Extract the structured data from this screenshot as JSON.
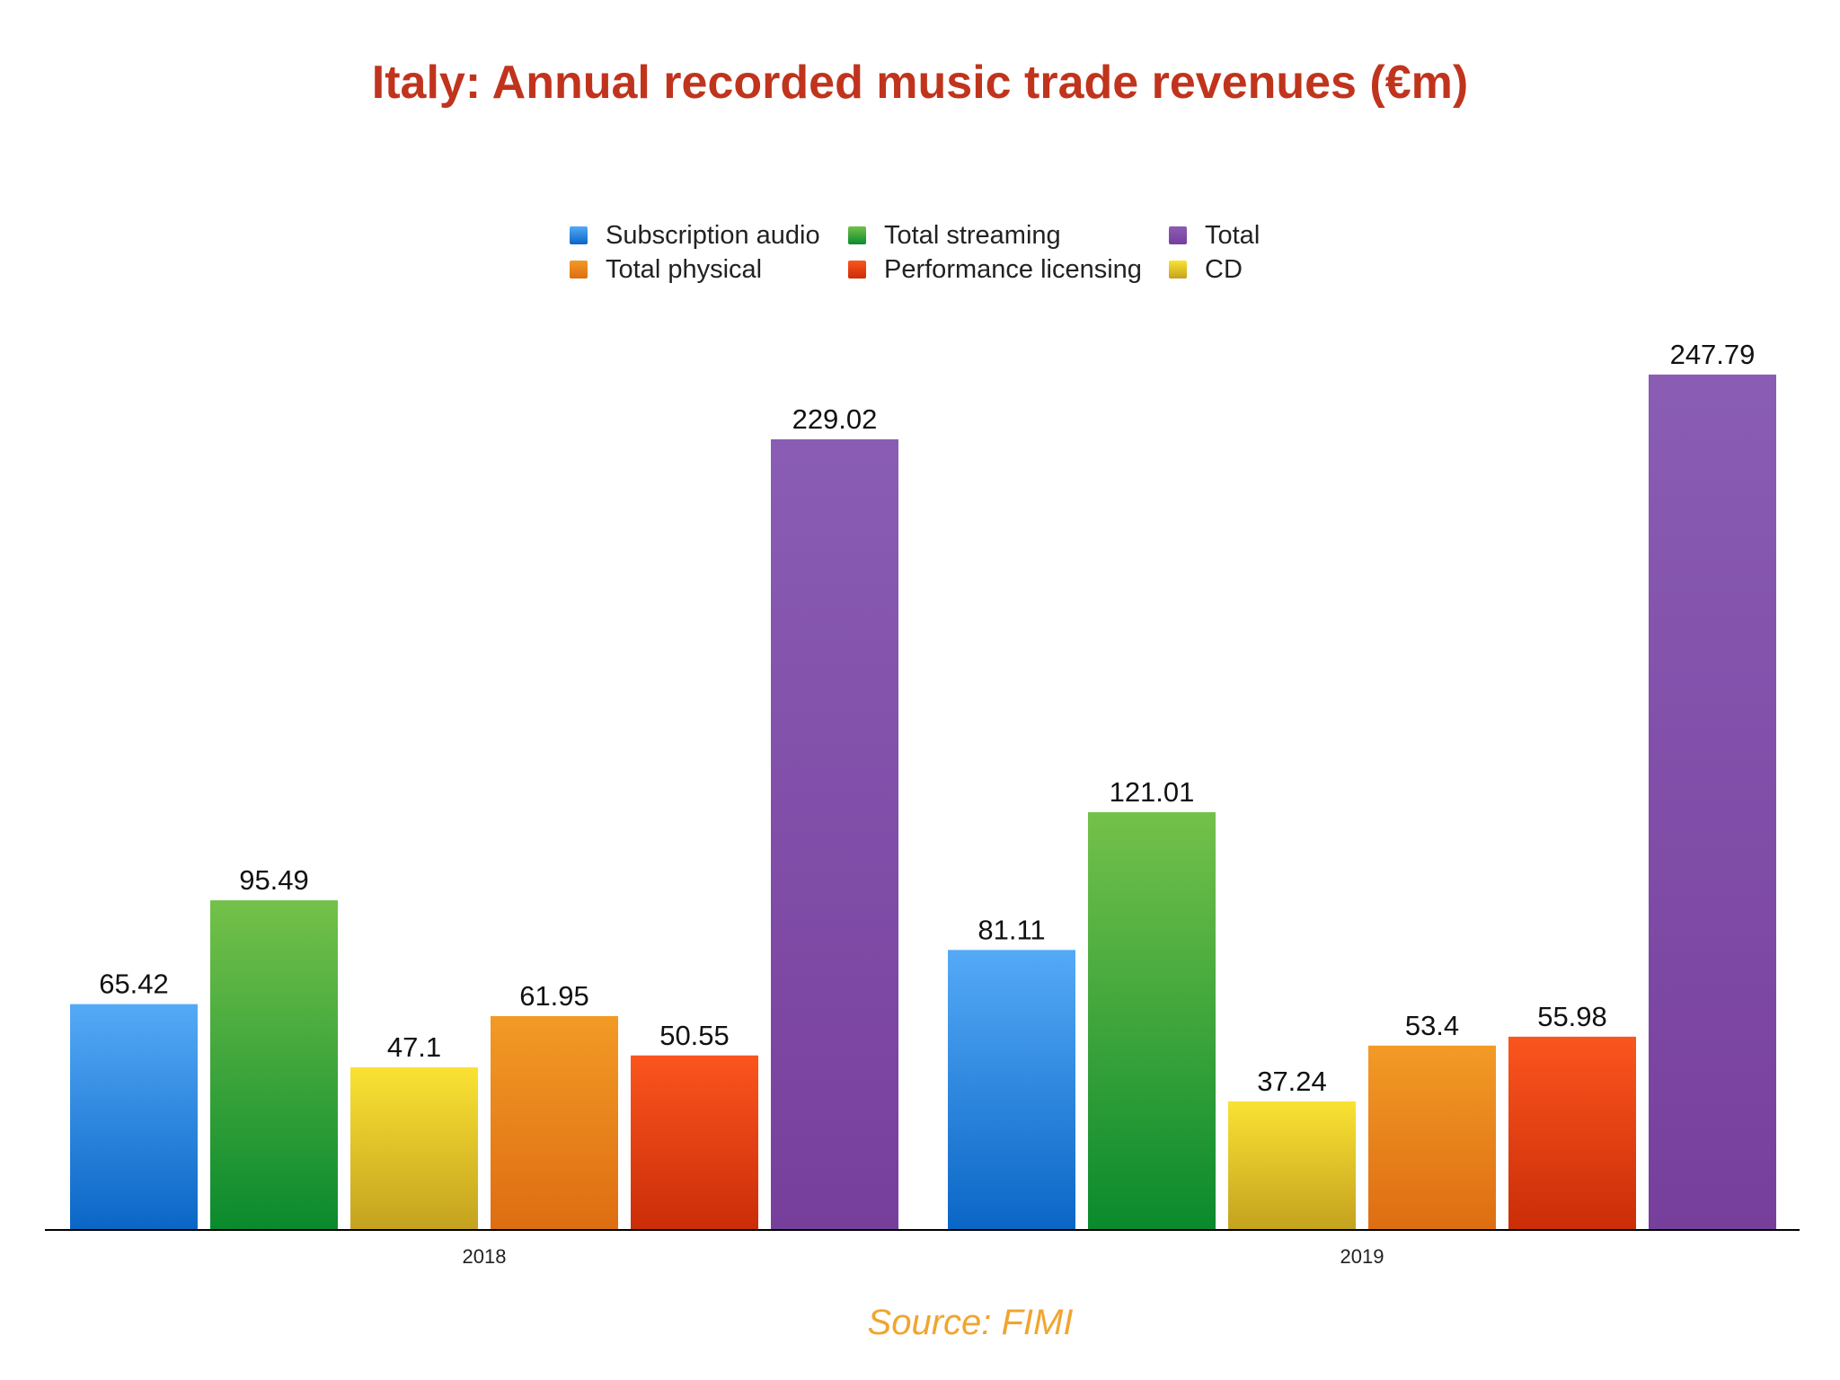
{
  "chart_data": {
    "type": "bar",
    "title": "Italy: Annual recorded music trade revenues (€m)",
    "categories": [
      "2018",
      "2019"
    ],
    "series": [
      {
        "name": "Subscription audio",
        "values": [
          65.42,
          81.11
        ],
        "color": "#2f8ae8",
        "colorTop": "#55aaf7",
        "colorBottom": "#0a66c6"
      },
      {
        "name": "Total streaming",
        "values": [
          95.49,
          121.01
        ],
        "color": "#3aa335",
        "colorTop": "#74c14a",
        "colorBottom": "#0a8a2d"
      },
      {
        "name": "CD",
        "values": [
          47.1,
          37.24
        ],
        "color": "#e3c420",
        "colorTop": "#fae233",
        "colorBottom": "#c4a21f"
      },
      {
        "name": "Total physical",
        "values": [
          61.95,
          53.4
        ],
        "color": "#e8821c",
        "colorTop": "#f29a26",
        "colorBottom": "#de6d12"
      },
      {
        "name": "Performance licensing",
        "values": [
          50.55,
          55.98
        ],
        "color": "#e2471a",
        "colorTop": "#fb551e",
        "colorBottom": "#cb2d08"
      },
      {
        "name": "Total",
        "values": [
          229.02,
          247.79
        ],
        "color": "#7f4ea8",
        "colorTop": "#8a5db4",
        "colorBottom": "#773f9c"
      }
    ],
    "ylim": [
      0,
      270
    ],
    "xlabel": "",
    "ylabel": "",
    "grid": false,
    "legend_position": "top-center",
    "data_labels": true
  },
  "legend_order": [
    0,
    1,
    5,
    3,
    4,
    2
  ],
  "source": "Source: FIMI"
}
